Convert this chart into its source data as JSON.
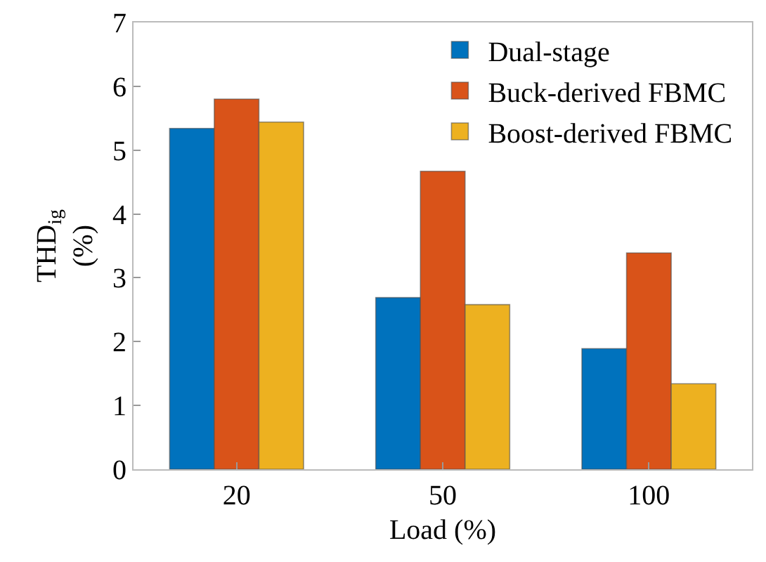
{
  "chart_data": {
    "type": "bar",
    "xlabel": "Load (%)",
    "ylabel": "THD$_{ig}$\n(%)",
    "categories": [
      "20",
      "50",
      "100"
    ],
    "series": [
      {
        "name": "Dual-stage",
        "color": "#0072bd",
        "values": [
          5.34,
          2.69,
          1.89
        ]
      },
      {
        "name": "Buck-derived FBMC",
        "color": "#d95319",
        "values": [
          5.8,
          4.67,
          3.39
        ]
      },
      {
        "name": "Boost-derived FBMC",
        "color": "#edb120",
        "values": [
          5.44,
          2.58,
          1.34
        ]
      }
    ],
    "ylim": [
      0,
      7
    ],
    "yticks": [
      0,
      1,
      2,
      3,
      4,
      5,
      6,
      7
    ],
    "grid": false,
    "legend": "top right"
  }
}
